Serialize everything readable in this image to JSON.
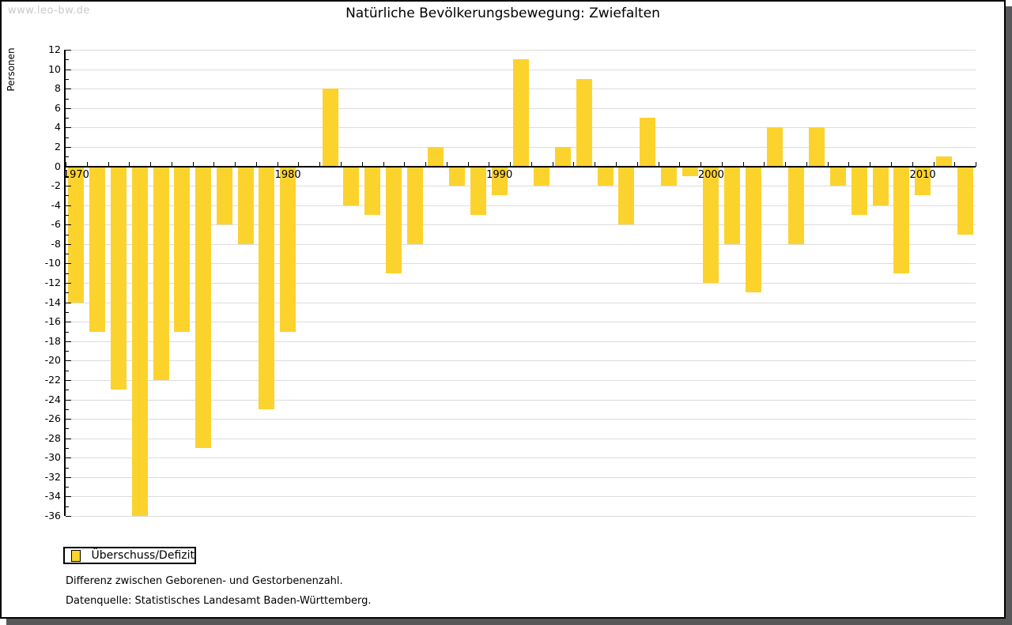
{
  "watermark": "www.leo-bw.de",
  "title": "Natürliche Bevölkerungsbewegung: Zwiefalten",
  "legend": {
    "label": "Überschuss/Defizit"
  },
  "footnotes": [
    "Differenz zwischen Geborenen- und Gestorbenenzahl.",
    "Datenquelle: Statistisches Landesamt Baden-Württemberg."
  ],
  "colors": {
    "bar": "#FCD32D",
    "gridline": "#DCDCDC",
    "axis": "#000000",
    "shadow": "#58585A",
    "watermark": "#C9C9C9"
  },
  "chart_data": {
    "type": "bar",
    "title": "Natürliche Bevölkerungsbewegung: Zwiefalten",
    "xlabel": "",
    "ylabel": "Personen",
    "ylim": [
      -36,
      12
    ],
    "grid_step": 2,
    "grid": true,
    "legend_position": "bottom-left",
    "series_name": "Überschuss/Defizit",
    "bar_color": "#FCD32D",
    "x_tick_labels": [
      1970,
      1980,
      1990,
      2000,
      2010
    ],
    "x": [
      1970,
      1971,
      1972,
      1973,
      1974,
      1975,
      1976,
      1977,
      1978,
      1979,
      1980,
      1981,
      1982,
      1983,
      1984,
      1985,
      1986,
      1987,
      1988,
      1989,
      1990,
      1991,
      1992,
      1993,
      1994,
      1995,
      1996,
      1997,
      1998,
      1999,
      2000,
      2001,
      2002,
      2003,
      2004,
      2005,
      2006,
      2007,
      2008,
      2009,
      2010,
      2011,
      2012
    ],
    "values": [
      -14,
      -17,
      -23,
      -36,
      -22,
      -17,
      -29,
      -6,
      -8,
      -25,
      -17,
      0,
      8,
      -4,
      -5,
      -11,
      -8,
      2,
      -2,
      -5,
      -3,
      11,
      -2,
      2,
      9,
      -2,
      -6,
      5,
      -2,
      -1,
      -12,
      -8,
      -13,
      4,
      -8,
      4,
      -2,
      -5,
      -4,
      -11,
      -3,
      1,
      -7
    ]
  }
}
